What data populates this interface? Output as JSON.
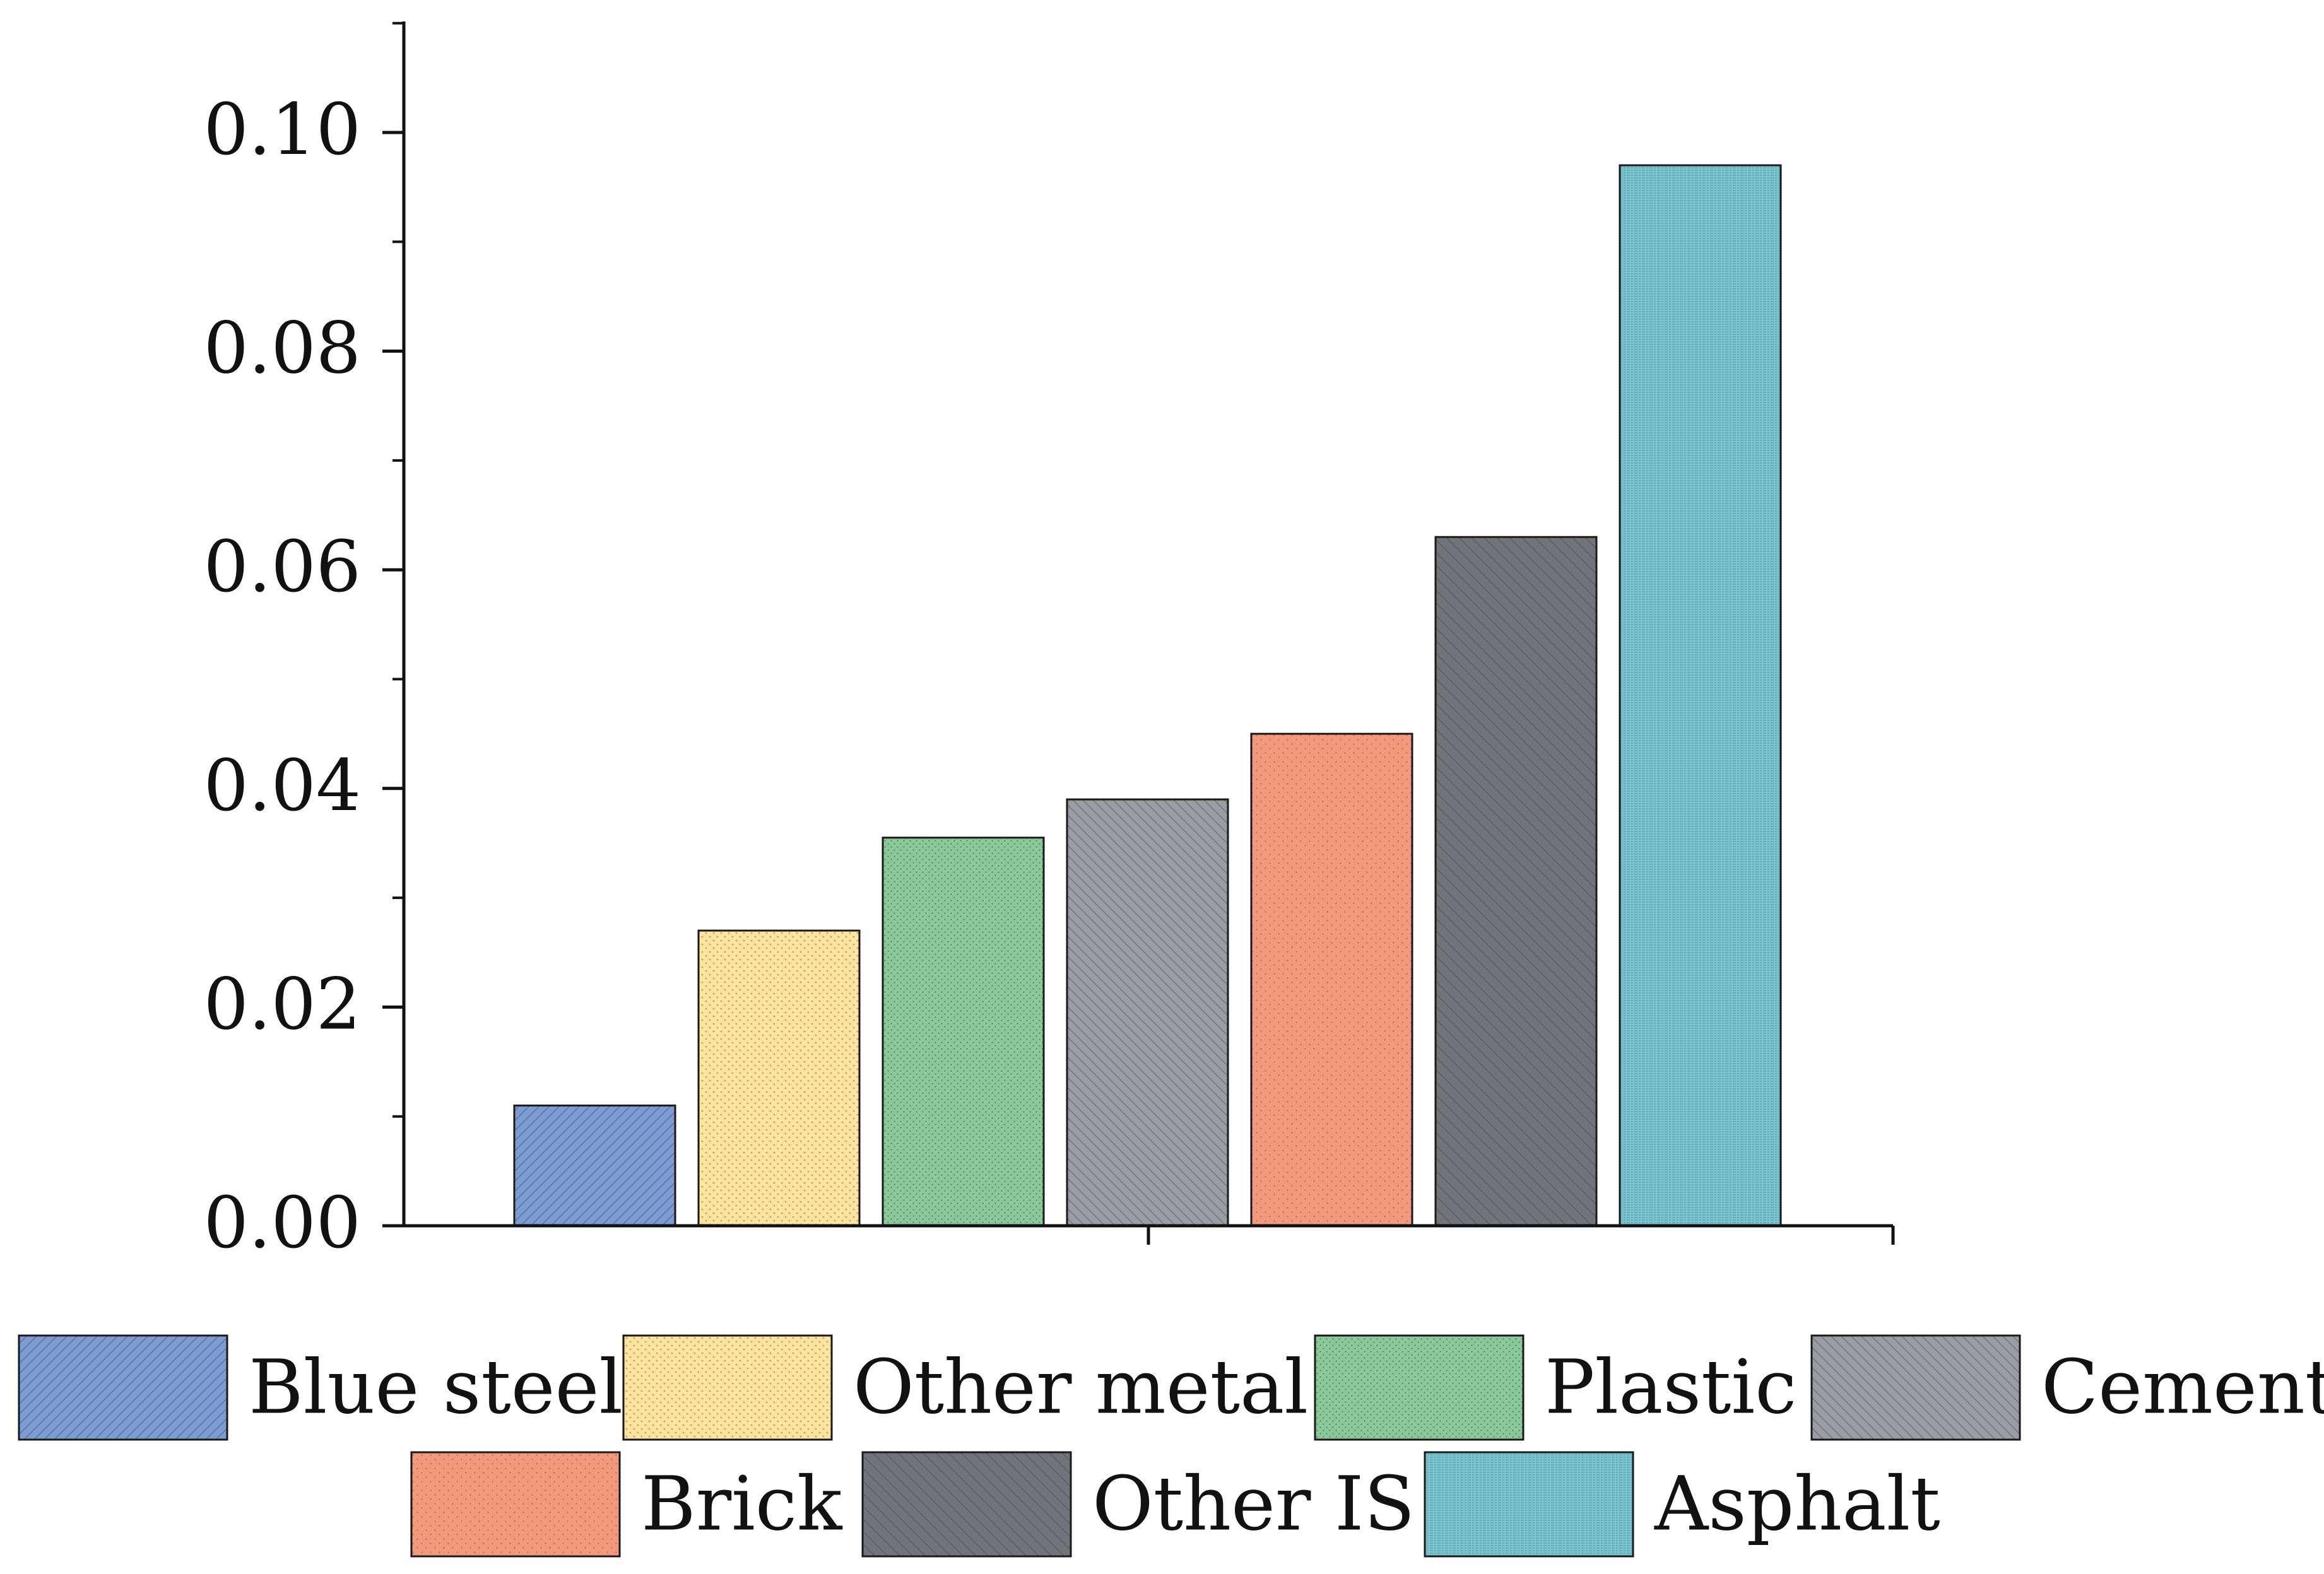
{
  "chart_data": {
    "type": "bar",
    "title": "",
    "xlabel": "",
    "ylabel": "",
    "ylim": [
      0,
      0.11
    ],
    "yticks": [
      {
        "value": 0.0,
        "label": "0.00"
      },
      {
        "value": 0.02,
        "label": "0.02"
      },
      {
        "value": 0.04,
        "label": "0.04"
      },
      {
        "value": 0.06,
        "label": "0.06"
      },
      {
        "value": 0.08,
        "label": "0.08"
      },
      {
        "value": 0.1,
        "label": "0.10"
      }
    ],
    "yminor_step": 0.01,
    "grid": false,
    "legend_position": "bottom",
    "categories": [
      "Blue steel",
      "Other metal",
      "Plastic",
      "Cement",
      "Brick",
      "Other IS",
      "Asphalt"
    ],
    "values": [
      0.011,
      0.027,
      0.0355,
      0.039,
      0.045,
      0.063,
      0.097
    ],
    "series_styles": [
      {
        "name": "Blue steel",
        "color": "#7b9bd1",
        "pattern": "diag-up"
      },
      {
        "name": "Other metal",
        "color": "#fde3a0",
        "pattern": "dots"
      },
      {
        "name": "Plastic",
        "color": "#8cc99a",
        "pattern": "vdots"
      },
      {
        "name": "Cement",
        "color": "#9a9ca1",
        "pattern": "diag-down"
      },
      {
        "name": "Brick",
        "color": "#f1987d",
        "pattern": "fine-dots"
      },
      {
        "name": "Other IS",
        "color": "#717479",
        "pattern": "diag-down-wide"
      },
      {
        "name": "Asphalt",
        "color": "#7ac3cf",
        "pattern": "hlines"
      }
    ]
  }
}
